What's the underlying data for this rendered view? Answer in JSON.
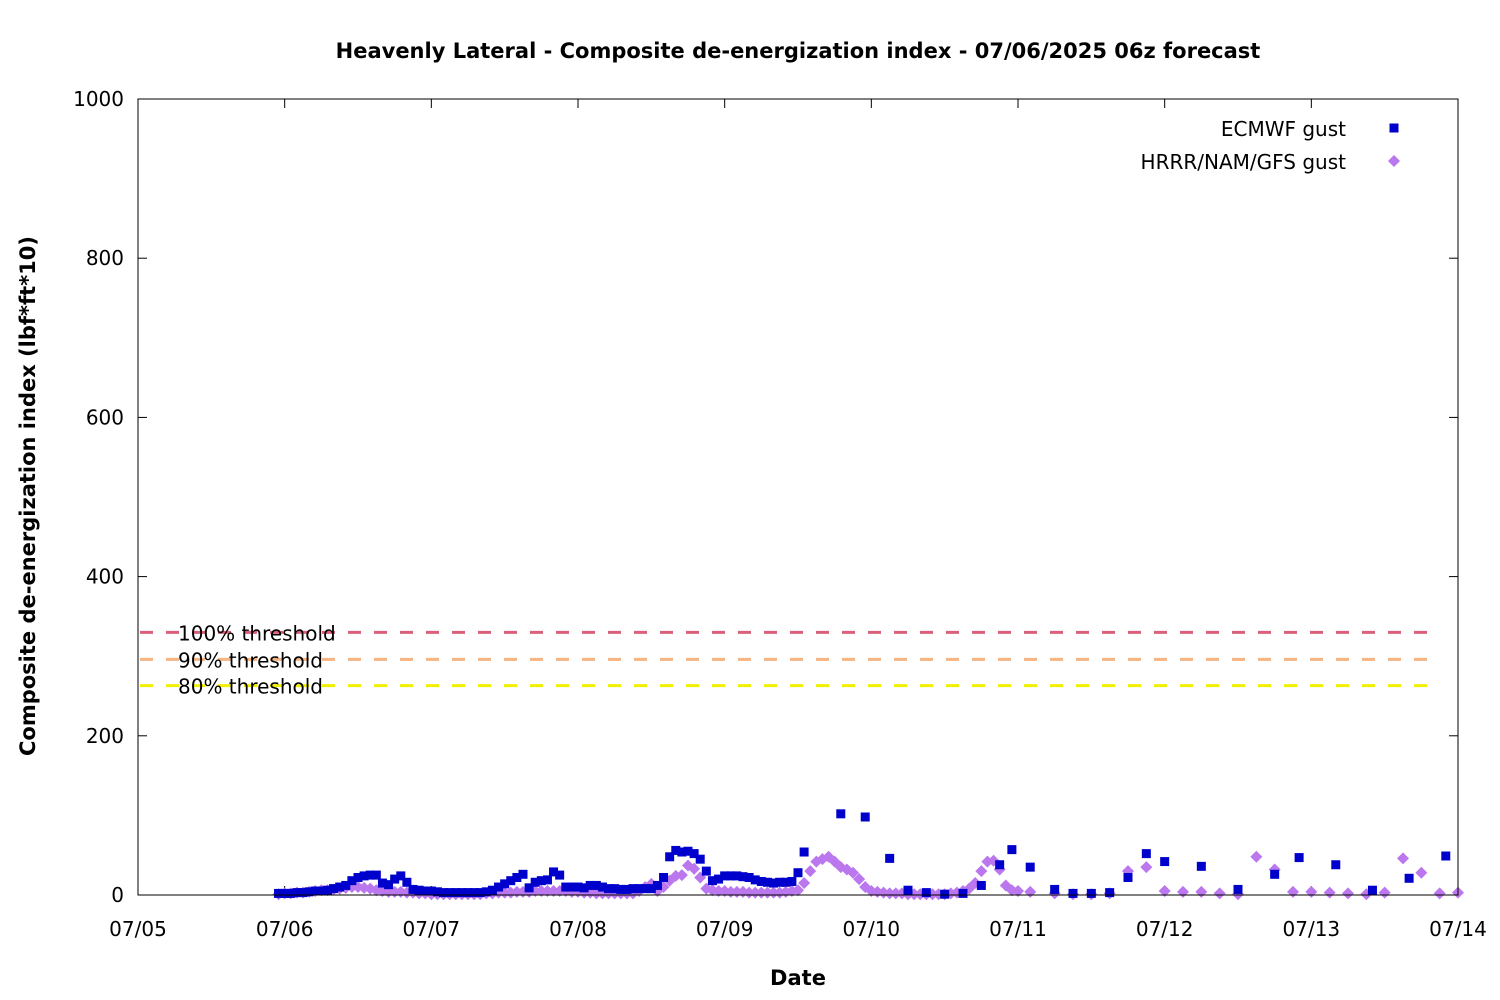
{
  "chart_data": {
    "type": "scatter",
    "title": "Heavenly Lateral - Composite de-energization index - 07/06/2025 06z forecast",
    "xlabel": "Date",
    "ylabel": "Composite de-energization index (lbf*ft*10)",
    "ylim": [
      0,
      1000
    ],
    "xlim": [
      0,
      9
    ],
    "x_unit": "days since 07/05",
    "x_ticks": [
      {
        "value": 0,
        "label": "07/05"
      },
      {
        "value": 1,
        "label": "07/06"
      },
      {
        "value": 2,
        "label": "07/07"
      },
      {
        "value": 3,
        "label": "07/08"
      },
      {
        "value": 4,
        "label": "07/09"
      },
      {
        "value": 5,
        "label": "07/10"
      },
      {
        "value": 6,
        "label": "07/11"
      },
      {
        "value": 7,
        "label": "07/12"
      },
      {
        "value": 8,
        "label": "07/13"
      },
      {
        "value": 9,
        "label": "07/14"
      }
    ],
    "y_ticks": [
      {
        "value": 0,
        "label": "0"
      },
      {
        "value": 200,
        "label": "200"
      },
      {
        "value": 400,
        "label": "400"
      },
      {
        "value": 600,
        "label": "600"
      },
      {
        "value": 800,
        "label": "800"
      },
      {
        "value": 1000,
        "label": "1000"
      }
    ],
    "legend_position": "top-right",
    "thresholds": [
      {
        "label": "100% threshold",
        "value": 330,
        "color": "#d9607a"
      },
      {
        "label": "90% threshold",
        "value": 296,
        "color": "#f5b482"
      },
      {
        "label": "80% threshold",
        "value": 263,
        "color": "#f0f000"
      }
    ],
    "series": [
      {
        "name": "ECMWF gust",
        "marker": "square",
        "color": "#0000cc",
        "points": [
          [
            0.9583,
            2
          ],
          [
            1.0,
            2
          ],
          [
            1.0417,
            2
          ],
          [
            1.0833,
            3
          ],
          [
            1.125,
            3
          ],
          [
            1.1667,
            4
          ],
          [
            1.2083,
            5
          ],
          [
            1.25,
            5
          ],
          [
            1.2917,
            6
          ],
          [
            1.3333,
            8
          ],
          [
            1.375,
            10
          ],
          [
            1.4167,
            12
          ],
          [
            1.4583,
            18
          ],
          [
            1.5,
            22
          ],
          [
            1.5417,
            24
          ],
          [
            1.5833,
            25
          ],
          [
            1.625,
            25
          ],
          [
            1.6667,
            15
          ],
          [
            1.7083,
            13
          ],
          [
            1.75,
            20
          ],
          [
            1.7917,
            24
          ],
          [
            1.8333,
            16
          ],
          [
            1.875,
            7
          ],
          [
            1.9167,
            6
          ],
          [
            1.9583,
            5
          ],
          [
            2.0,
            5
          ],
          [
            2.0417,
            4
          ],
          [
            2.0833,
            3
          ],
          [
            2.125,
            3
          ],
          [
            2.1667,
            3
          ],
          [
            2.2083,
            3
          ],
          [
            2.25,
            3
          ],
          [
            2.2917,
            3
          ],
          [
            2.3333,
            3
          ],
          [
            2.375,
            4
          ],
          [
            2.4167,
            6
          ],
          [
            2.4583,
            10
          ],
          [
            2.5,
            14
          ],
          [
            2.5417,
            18
          ],
          [
            2.5833,
            22
          ],
          [
            2.625,
            26
          ],
          [
            2.6667,
            9
          ],
          [
            2.7083,
            16
          ],
          [
            2.75,
            18
          ],
          [
            2.7917,
            19
          ],
          [
            2.8333,
            29
          ],
          [
            2.875,
            25
          ],
          [
            2.9167,
            10
          ],
          [
            2.9583,
            10
          ],
          [
            3.0,
            10
          ],
          [
            3.0417,
            9
          ],
          [
            3.0833,
            12
          ],
          [
            3.125,
            12
          ],
          [
            3.1667,
            10
          ],
          [
            3.2083,
            8
          ],
          [
            3.25,
            8
          ],
          [
            3.2917,
            7
          ],
          [
            3.3333,
            7
          ],
          [
            3.375,
            8
          ],
          [
            3.4167,
            8
          ],
          [
            3.4583,
            8
          ],
          [
            3.5,
            8
          ],
          [
            3.5417,
            12
          ],
          [
            3.5833,
            22
          ],
          [
            3.625,
            48
          ],
          [
            3.6667,
            56
          ],
          [
            3.7083,
            54
          ],
          [
            3.75,
            55
          ],
          [
            3.7917,
            52
          ],
          [
            3.8333,
            45
          ],
          [
            3.875,
            30
          ],
          [
            3.9167,
            18
          ],
          [
            3.9583,
            20
          ],
          [
            4.0,
            24
          ],
          [
            4.0417,
            24
          ],
          [
            4.0833,
            24
          ],
          [
            4.125,
            23
          ],
          [
            4.1667,
            22
          ],
          [
            4.2083,
            19
          ],
          [
            4.25,
            17
          ],
          [
            4.2917,
            16
          ],
          [
            4.3333,
            15
          ],
          [
            4.375,
            16
          ],
          [
            4.4167,
            16
          ],
          [
            4.4583,
            17
          ],
          [
            4.5,
            28
          ],
          [
            4.5417,
            54
          ],
          [
            4.7917,
            102
          ],
          [
            4.9583,
            98
          ],
          [
            5.125,
            46
          ],
          [
            5.25,
            6
          ],
          [
            5.375,
            3
          ],
          [
            5.5,
            1
          ],
          [
            5.625,
            2
          ],
          [
            5.75,
            12
          ],
          [
            5.875,
            38
          ],
          [
            5.9583,
            57
          ],
          [
            6.0833,
            35
          ],
          [
            6.25,
            7
          ],
          [
            6.375,
            2
          ],
          [
            6.5,
            2
          ],
          [
            6.625,
            3
          ],
          [
            6.75,
            22
          ],
          [
            6.875,
            52
          ],
          [
            7.0,
            42
          ],
          [
            7.25,
            36
          ],
          [
            7.5,
            7
          ],
          [
            7.75,
            26
          ],
          [
            7.9167,
            47
          ],
          [
            8.1667,
            38
          ],
          [
            8.4167,
            6
          ],
          [
            8.6667,
            21
          ],
          [
            8.9167,
            49
          ]
        ]
      },
      {
        "name": "HRRR/NAM/GFS gust",
        "marker": "diamond",
        "color": "#bb77ee",
        "points": [
          [
            0.9583,
            1
          ],
          [
            1.0,
            2
          ],
          [
            1.0417,
            2
          ],
          [
            1.0833,
            3
          ],
          [
            1.125,
            3
          ],
          [
            1.1667,
            4
          ],
          [
            1.2083,
            5
          ],
          [
            1.25,
            6
          ],
          [
            1.2917,
            6
          ],
          [
            1.3333,
            7
          ],
          [
            1.375,
            8
          ],
          [
            1.4167,
            9
          ],
          [
            1.4583,
            10
          ],
          [
            1.5,
            10
          ],
          [
            1.5417,
            9
          ],
          [
            1.5833,
            8
          ],
          [
            1.625,
            6
          ],
          [
            1.6667,
            5
          ],
          [
            1.7083,
            4
          ],
          [
            1.75,
            4
          ],
          [
            1.7917,
            4
          ],
          [
            1.8333,
            3
          ],
          [
            1.875,
            3
          ],
          [
            1.9167,
            2
          ],
          [
            1.9583,
            2
          ],
          [
            2.0,
            1
          ],
          [
            2.0417,
            1
          ],
          [
            2.0833,
            1
          ],
          [
            2.125,
            1
          ],
          [
            2.1667,
            1
          ],
          [
            2.2083,
            1
          ],
          [
            2.25,
            1
          ],
          [
            2.2917,
            1
          ],
          [
            2.3333,
            1
          ],
          [
            2.375,
            2
          ],
          [
            2.4167,
            2
          ],
          [
            2.4583,
            3
          ],
          [
            2.5,
            3
          ],
          [
            2.5417,
            3
          ],
          [
            2.5833,
            4
          ],
          [
            2.625,
            4
          ],
          [
            2.6667,
            4
          ],
          [
            2.7083,
            5
          ],
          [
            2.75,
            5
          ],
          [
            2.7917,
            5
          ],
          [
            2.8333,
            5
          ],
          [
            2.875,
            5
          ],
          [
            2.9167,
            5
          ],
          [
            2.9583,
            4
          ],
          [
            3.0,
            4
          ],
          [
            3.0417,
            3
          ],
          [
            3.0833,
            3
          ],
          [
            3.125,
            2
          ],
          [
            3.1667,
            2
          ],
          [
            3.2083,
            2
          ],
          [
            3.25,
            2
          ],
          [
            3.2917,
            2
          ],
          [
            3.3333,
            2
          ],
          [
            3.375,
            2
          ],
          [
            3.4167,
            5
          ],
          [
            3.4583,
            10
          ],
          [
            3.5,
            14
          ],
          [
            3.5417,
            5
          ],
          [
            3.5833,
            10
          ],
          [
            3.625,
            18
          ],
          [
            3.6667,
            24
          ],
          [
            3.7083,
            25
          ],
          [
            3.75,
            37
          ],
          [
            3.7917,
            33
          ],
          [
            3.8333,
            22
          ],
          [
            3.875,
            8
          ],
          [
            3.9167,
            6
          ],
          [
            3.9583,
            5
          ],
          [
            4.0,
            5
          ],
          [
            4.0417,
            4
          ],
          [
            4.0833,
            4
          ],
          [
            4.125,
            4
          ],
          [
            4.1667,
            3
          ],
          [
            4.2083,
            3
          ],
          [
            4.25,
            3
          ],
          [
            4.2917,
            3
          ],
          [
            4.3333,
            3
          ],
          [
            4.375,
            3
          ],
          [
            4.4167,
            4
          ],
          [
            4.4583,
            5
          ],
          [
            4.5,
            6
          ],
          [
            4.5417,
            15
          ],
          [
            4.5833,
            30
          ],
          [
            4.625,
            42
          ],
          [
            4.6667,
            45
          ],
          [
            4.7083,
            48
          ],
          [
            4.75,
            42
          ],
          [
            4.7917,
            35
          ],
          [
            4.8333,
            32
          ],
          [
            4.875,
            28
          ],
          [
            4.9167,
            20
          ],
          [
            4.9583,
            10
          ],
          [
            5.0,
            5
          ],
          [
            5.0417,
            4
          ],
          [
            5.0833,
            3
          ],
          [
            5.125,
            2
          ],
          [
            5.1667,
            2
          ],
          [
            5.2083,
            2
          ],
          [
            5.25,
            1
          ],
          [
            5.2917,
            1
          ],
          [
            5.3333,
            1
          ],
          [
            5.375,
            1
          ],
          [
            5.4167,
            1
          ],
          [
            5.4583,
            1
          ],
          [
            5.5,
            1
          ],
          [
            5.5417,
            2
          ],
          [
            5.5833,
            3
          ],
          [
            5.625,
            5
          ],
          [
            5.6667,
            8
          ],
          [
            5.7083,
            15
          ],
          [
            5.75,
            30
          ],
          [
            5.7917,
            42
          ],
          [
            5.8333,
            43
          ],
          [
            5.875,
            32
          ],
          [
            5.9167,
            12
          ],
          [
            5.9583,
            6
          ],
          [
            6.0,
            5
          ],
          [
            6.0833,
            4
          ],
          [
            6.25,
            2
          ],
          [
            6.375,
            1
          ],
          [
            6.5,
            1
          ],
          [
            6.625,
            2
          ],
          [
            6.75,
            30
          ],
          [
            6.875,
            35
          ],
          [
            7.0,
            5
          ],
          [
            7.125,
            4
          ],
          [
            7.25,
            4
          ],
          [
            7.375,
            2
          ],
          [
            7.5,
            1
          ],
          [
            7.625,
            48
          ],
          [
            7.75,
            32
          ],
          [
            7.875,
            4
          ],
          [
            8.0,
            4
          ],
          [
            8.125,
            3
          ],
          [
            8.25,
            2
          ],
          [
            8.375,
            1
          ],
          [
            8.5,
            3
          ],
          [
            8.625,
            46
          ],
          [
            8.75,
            28
          ],
          [
            8.875,
            2
          ],
          [
            9.0,
            3
          ]
        ]
      }
    ]
  }
}
